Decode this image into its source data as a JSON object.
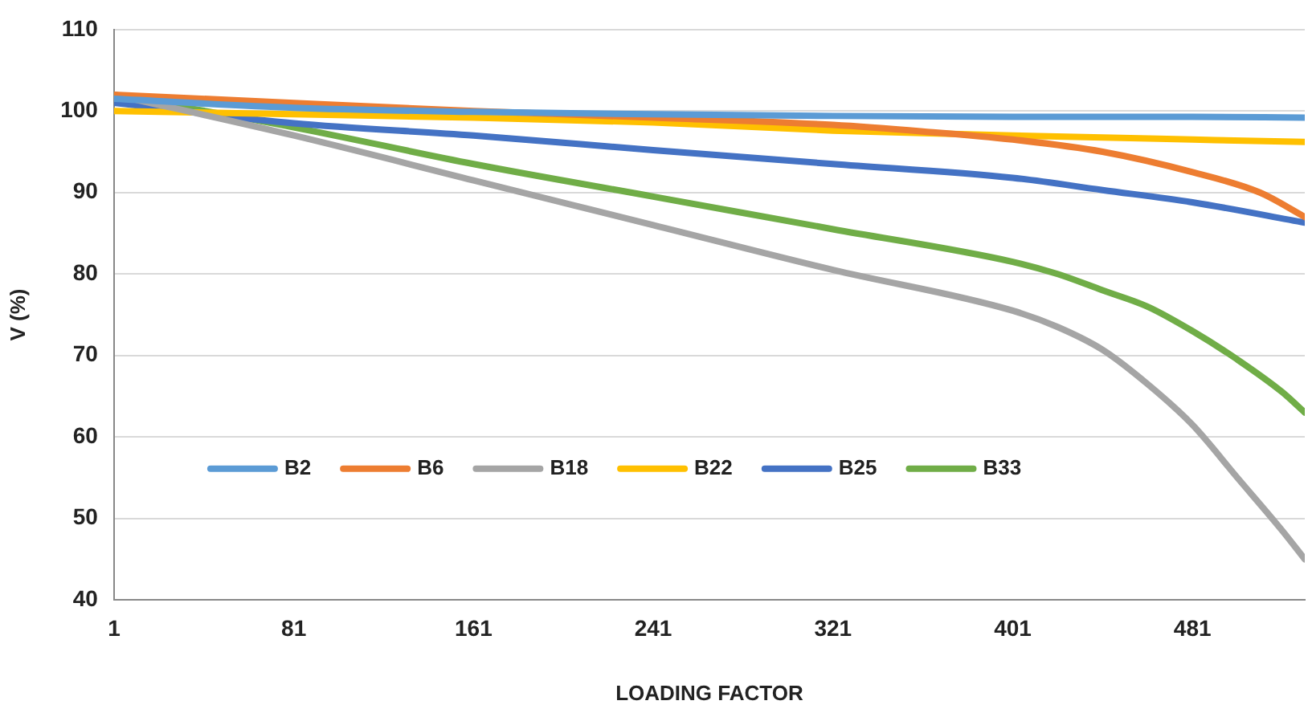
{
  "chart_data": {
    "type": "line",
    "xlabel": "LOADING FACTOR",
    "ylabel": "V (%)",
    "xlim": [
      1,
      531
    ],
    "xticks": [
      1,
      81,
      161,
      241,
      321,
      401,
      481
    ],
    "ylim": [
      40,
      110
    ],
    "yticks": [
      40,
      50,
      60,
      70,
      80,
      90,
      100,
      110
    ],
    "grid": "y",
    "legend": "bottom left",
    "marker": "none",
    "line_style": "solid",
    "series": [
      {
        "name": "B2",
        "color": "#5b9bd5",
        "x": [
          1,
          81,
          161,
          241,
          321,
          401,
          481,
          531
        ],
        "values": [
          101.5,
          100.4,
          99.9,
          99.6,
          99.4,
          99.3,
          99.3,
          99.2
        ]
      },
      {
        "name": "B6",
        "color": "#ed7d31",
        "x": [
          1,
          81,
          161,
          241,
          321,
          361,
          401,
          441,
          481,
          511,
          531
        ],
        "values": [
          102,
          101,
          100,
          99.2,
          98.3,
          97.5,
          96.5,
          95,
          92.5,
          90,
          87
        ]
      },
      {
        "name": "B18",
        "color": "#a5a5a5",
        "x": [
          1,
          81,
          161,
          241,
          321,
          401,
          421,
          441,
          461,
          481,
          501,
          521,
          531
        ],
        "values": [
          102,
          97,
          91.5,
          86,
          80.5,
          75.5,
          73.5,
          70.7,
          66.5,
          61.5,
          55,
          48.5,
          45
        ]
      },
      {
        "name": "B22",
        "color": "#ffc000",
        "x": [
          1,
          81,
          161,
          241,
          321,
          401,
          481,
          531
        ],
        "values": [
          100,
          99.6,
          99.2,
          98.6,
          97.6,
          97,
          96.5,
          96.2
        ]
      },
      {
        "name": "B25",
        "color": "#4472c4",
        "x": [
          1,
          81,
          161,
          241,
          321,
          401,
          441,
          481,
          531
        ],
        "values": [
          101,
          98.5,
          97,
          95.2,
          93.5,
          91.8,
          90.3,
          88.8,
          86.3
        ]
      },
      {
        "name": "B33",
        "color": "#70ad47",
        "x": [
          1,
          81,
          161,
          241,
          321,
          401,
          421,
          441,
          461,
          481,
          501,
          521,
          531
        ],
        "values": [
          102,
          98,
          93.5,
          89.5,
          85.5,
          81.5,
          80,
          78,
          76,
          73,
          69.5,
          65.5,
          63
        ]
      }
    ]
  }
}
